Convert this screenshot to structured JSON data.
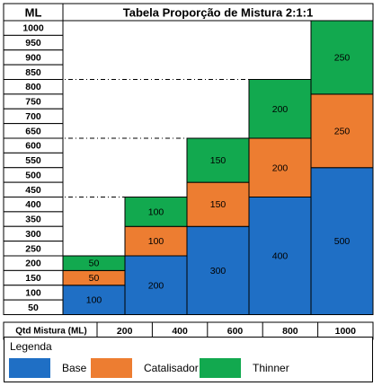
{
  "chart_data": {
    "type": "bar",
    "stacked": true,
    "title": "Tabela Proporção de Mistura 2:1:1",
    "ylabel": "ML",
    "xlabel": "Qtd Mistura (ML)",
    "categories": [
      "200",
      "400",
      "600",
      "800",
      "1000"
    ],
    "ylim": [
      0,
      1050
    ],
    "yticks": [
      "1000",
      "950",
      "900",
      "850",
      "800",
      "750",
      "700",
      "650",
      "600",
      "550",
      "500",
      "450",
      "400",
      "350",
      "300",
      "250",
      "200",
      "150",
      "100",
      "50"
    ],
    "series": [
      {
        "name": "Base",
        "values": [
          100,
          200,
          300,
          400,
          500
        ],
        "color": "#1F6FC5"
      },
      {
        "name": "Catalisador",
        "values": [
          50,
          100,
          150,
          200,
          250
        ],
        "color": "#ED7D31"
      },
      {
        "name": "Thinner",
        "values": [
          50,
          100,
          150,
          200,
          250
        ],
        "color": "#12A94F"
      }
    ],
    "grid": false,
    "legend_placement": "bottom"
  },
  "legend": {
    "title": "Legenda"
  }
}
